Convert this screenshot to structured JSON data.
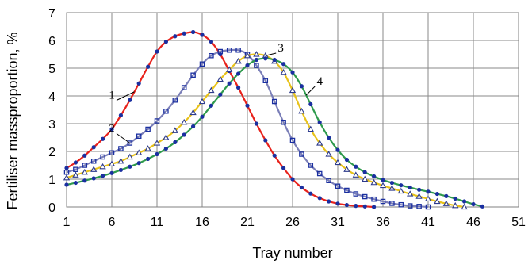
{
  "chart_data": {
    "type": "line",
    "xlabel": "Tray number",
    "ylabel": "Fertiliser massproportion, %",
    "xlim": [
      1,
      51
    ],
    "ylim": [
      0,
      7
    ],
    "xticks": [
      "1",
      "6",
      "11",
      "16",
      "21",
      "26",
      "31",
      "36",
      "41",
      "46",
      "51"
    ],
    "yticks": [
      "0",
      "1",
      "2",
      "3",
      "4",
      "5",
      "6",
      "7"
    ],
    "grid": true,
    "series": [
      {
        "name": "1",
        "color": "#e8221b",
        "marker_color": "#1a2fa0",
        "marker": "circle",
        "x": [
          1,
          2,
          3,
          4,
          5,
          6,
          7,
          8,
          9,
          10,
          11,
          12,
          13,
          14,
          15,
          16,
          17,
          18,
          19,
          20,
          21,
          22,
          23,
          24,
          25,
          26,
          27,
          28,
          29,
          30,
          31,
          32,
          33,
          34,
          35
        ],
        "y": [
          1.4,
          1.6,
          1.85,
          2.15,
          2.45,
          2.8,
          3.3,
          3.85,
          4.45,
          5.05,
          5.6,
          5.95,
          6.15,
          6.25,
          6.3,
          6.2,
          5.95,
          5.5,
          4.9,
          4.3,
          3.65,
          3.0,
          2.4,
          1.85,
          1.4,
          1.0,
          0.7,
          0.48,
          0.32,
          0.2,
          0.12,
          0.07,
          0.04,
          0.02,
          0.0
        ]
      },
      {
        "name": "2",
        "color": "#7b7fb8",
        "marker_color": "#1a2fa0",
        "marker": "square",
        "x": [
          1,
          2,
          3,
          4,
          5,
          6,
          7,
          8,
          9,
          10,
          11,
          12,
          13,
          14,
          15,
          16,
          17,
          18,
          19,
          20,
          21,
          22,
          23,
          24,
          25,
          26,
          27,
          28,
          29,
          30,
          31,
          32,
          33,
          34,
          35,
          36,
          37,
          38,
          39,
          40,
          41
        ],
        "y": [
          1.25,
          1.35,
          1.5,
          1.65,
          1.8,
          1.95,
          2.1,
          2.3,
          2.55,
          2.8,
          3.1,
          3.45,
          3.85,
          4.3,
          4.75,
          5.15,
          5.45,
          5.6,
          5.65,
          5.65,
          5.5,
          5.1,
          4.55,
          3.8,
          3.05,
          2.4,
          1.9,
          1.5,
          1.2,
          0.95,
          0.75,
          0.6,
          0.47,
          0.37,
          0.28,
          0.2,
          0.13,
          0.08,
          0.04,
          0.02,
          0.0
        ]
      },
      {
        "name": "3",
        "color": "#e8c21a",
        "marker_color": "#2d3a8c",
        "marker": "triangle",
        "x": [
          1,
          2,
          3,
          4,
          5,
          6,
          7,
          8,
          9,
          10,
          11,
          12,
          13,
          14,
          15,
          16,
          17,
          18,
          19,
          20,
          21,
          22,
          23,
          24,
          25,
          26,
          27,
          28,
          29,
          30,
          31,
          32,
          33,
          34,
          35,
          36,
          37,
          38,
          39,
          40,
          41,
          42,
          43,
          44,
          45
        ],
        "y": [
          1.05,
          1.15,
          1.25,
          1.35,
          1.45,
          1.55,
          1.65,
          1.8,
          1.95,
          2.1,
          2.3,
          2.5,
          2.75,
          3.05,
          3.4,
          3.8,
          4.2,
          4.6,
          4.95,
          5.25,
          5.45,
          5.5,
          5.45,
          5.25,
          4.85,
          4.2,
          3.45,
          2.8,
          2.3,
          1.9,
          1.6,
          1.35,
          1.15,
          1.0,
          0.88,
          0.77,
          0.67,
          0.57,
          0.47,
          0.38,
          0.29,
          0.2,
          0.12,
          0.05,
          0.0
        ]
      },
      {
        "name": "4",
        "color": "#2e9a4c",
        "marker_color": "#1a2fa0",
        "marker": "circle",
        "x": [
          1,
          2,
          3,
          4,
          5,
          6,
          7,
          8,
          9,
          10,
          11,
          12,
          13,
          14,
          15,
          16,
          17,
          18,
          19,
          20,
          21,
          22,
          23,
          24,
          25,
          26,
          27,
          28,
          29,
          30,
          31,
          32,
          33,
          34,
          35,
          36,
          37,
          38,
          39,
          40,
          41,
          42,
          43,
          44,
          45,
          46,
          47
        ],
        "y": [
          0.8,
          0.87,
          0.95,
          1.03,
          1.12,
          1.22,
          1.33,
          1.45,
          1.58,
          1.73,
          1.9,
          2.1,
          2.33,
          2.6,
          2.9,
          3.25,
          3.65,
          4.05,
          4.45,
          4.8,
          5.1,
          5.3,
          5.35,
          5.3,
          5.15,
          4.85,
          4.35,
          3.7,
          3.05,
          2.5,
          2.05,
          1.7,
          1.45,
          1.25,
          1.1,
          0.97,
          0.87,
          0.78,
          0.7,
          0.62,
          0.55,
          0.47,
          0.39,
          0.3,
          0.2,
          0.1,
          0.02
        ]
      }
    ],
    "annotations": [
      {
        "text": "1",
        "series": 0,
        "at_x": 8.5,
        "label_x": 6.0,
        "label_y": 3.9
      },
      {
        "text": "2",
        "series": 1,
        "at_x": 8.0,
        "label_x": 6.0,
        "label_y": 2.7
      },
      {
        "text": "3",
        "series": 2,
        "at_x": 23.0,
        "label_x": 24.7,
        "label_y": 5.6
      },
      {
        "text": "4",
        "series": 3,
        "at_x": 27.5,
        "label_x": 29.0,
        "label_y": 4.4
      }
    ]
  }
}
